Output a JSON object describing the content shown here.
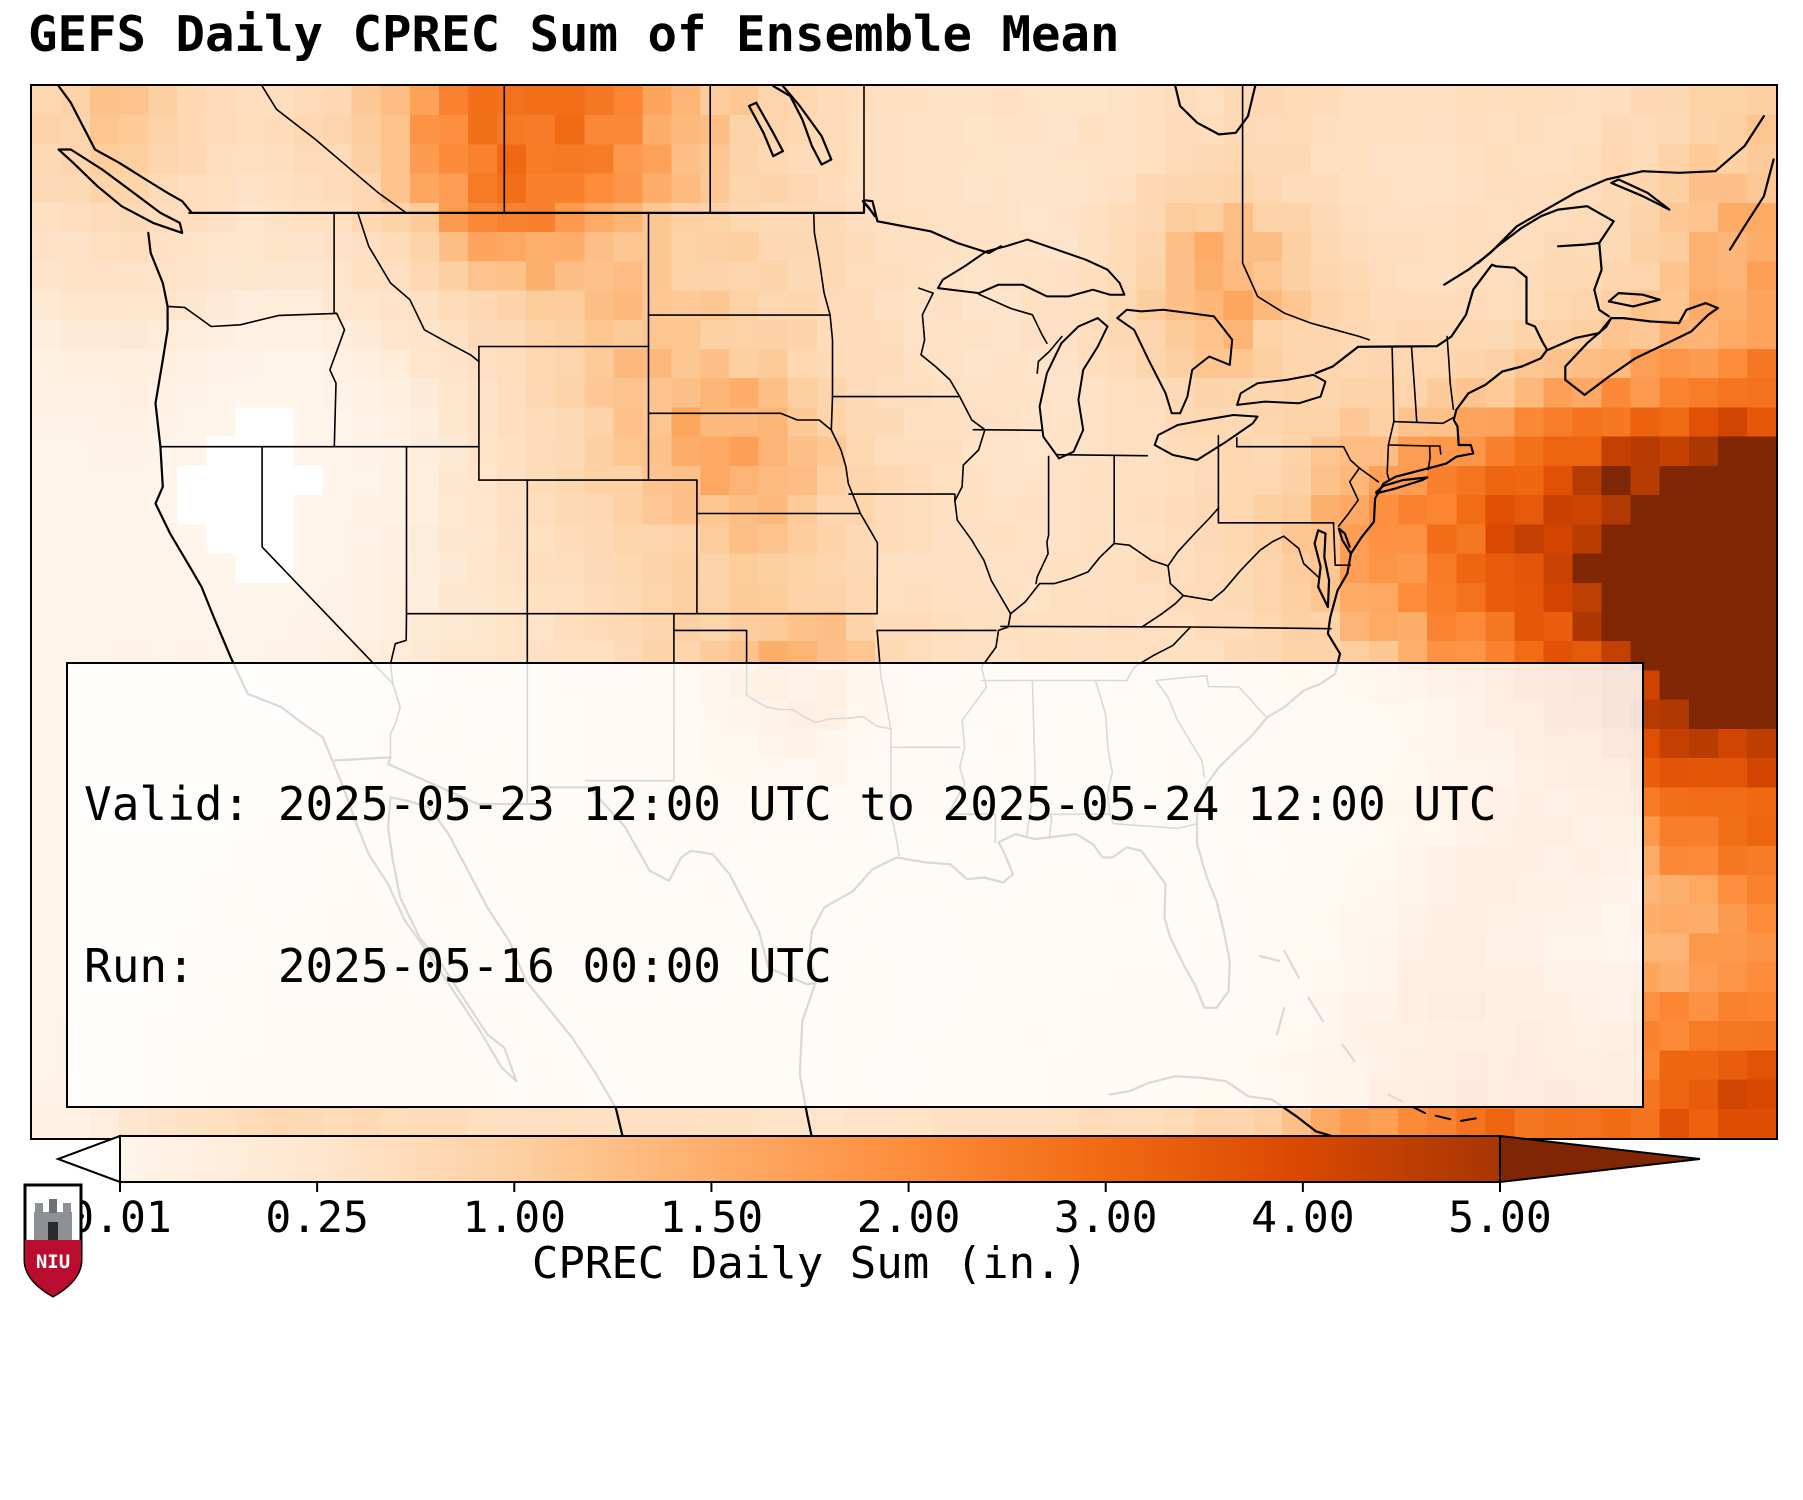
{
  "title": "GEFS Daily CPREC Sum of Ensemble Mean",
  "info_box": {
    "line1": "Valid: 2025-05-23 12:00 UTC to 2025-05-24 12:00 UTC",
    "line2": "Run:   2025-05-16 00:00 UTC"
  },
  "colorbar": {
    "label": "CPREC Daily Sum (in.)",
    "ticks": [
      "0.01",
      "0.25",
      "1.00",
      "1.50",
      "2.00",
      "3.00",
      "4.00",
      "5.00"
    ]
  },
  "logo": {
    "text": "NIU"
  },
  "chart_data": {
    "type": "heatmap",
    "title": "GEFS Daily CPREC Sum of Ensemble Mean",
    "units": "in.",
    "colorbar_label": "CPREC Daily Sum (in.)",
    "valid": "2025-05-23 12:00 UTC to 2025-05-24 12:00 UTC",
    "run": "2025-05-16 00:00 UTC",
    "levels": [
      0.01,
      0.25,
      1.0,
      1.5,
      2.0,
      3.0,
      4.0,
      5.0
    ],
    "palette": [
      "#fff5eb",
      "#fee6ce",
      "#fdd0a2",
      "#fdae6b",
      "#fd8d3c",
      "#f16913",
      "#d94801",
      "#a63603"
    ],
    "over_color": "#7f2704",
    "under_color": "#ffffff",
    "extent": {
      "lon": [
        -129.5,
        -57.5
      ],
      "lat": [
        21.3,
        52.8
      ]
    },
    "grid": {
      "cols": 30,
      "rows": 18,
      "values": [
        [
          0.9,
          1.2,
          0.8,
          0.5,
          0.6,
          0.9,
          1.5,
          2.4,
          2.9,
          2.6,
          1.9,
          1.3,
          0.9,
          0.7,
          0.5,
          0.4,
          0.4,
          0.35,
          0.4,
          0.5,
          0.6,
          0.7,
          0.5,
          0.45,
          0.5,
          0.6,
          0.5,
          0.6,
          0.8,
          1.0
        ],
        [
          0.7,
          1.0,
          0.7,
          0.4,
          0.5,
          0.7,
          1.3,
          2.6,
          3.1,
          2.3,
          1.6,
          1.1,
          0.8,
          0.6,
          0.45,
          0.35,
          0.3,
          0.3,
          0.4,
          0.6,
          0.8,
          0.6,
          0.45,
          0.35,
          0.4,
          0.5,
          0.5,
          0.7,
          1.0,
          1.2
        ],
        [
          0.4,
          0.6,
          0.5,
          0.3,
          0.35,
          0.5,
          0.8,
          1.6,
          2.0,
          1.5,
          1.2,
          1.0,
          0.85,
          0.7,
          0.5,
          0.4,
          0.35,
          0.3,
          0.5,
          1.0,
          1.4,
          1.0,
          0.5,
          0.4,
          0.45,
          0.5,
          0.6,
          0.8,
          1.2,
          1.5
        ],
        [
          0.25,
          0.35,
          0.25,
          0.2,
          0.15,
          0.3,
          0.45,
          0.8,
          1.1,
          1.2,
          1.25,
          1.0,
          0.85,
          0.7,
          0.5,
          0.4,
          0.35,
          0.4,
          0.6,
          1.2,
          1.7,
          1.2,
          0.8,
          0.6,
          0.5,
          0.55,
          0.7,
          0.9,
          1.3,
          1.6
        ],
        [
          0.12,
          0.15,
          0.1,
          0.05,
          0.02,
          0.1,
          0.25,
          0.45,
          0.7,
          1.0,
          1.3,
          1.2,
          0.95,
          0.75,
          0.55,
          0.4,
          0.3,
          0.4,
          0.6,
          0.9,
          1.2,
          0.9,
          0.8,
          0.7,
          0.7,
          0.8,
          1.0,
          1.2,
          1.6,
          2.0
        ],
        [
          0.06,
          0.08,
          0.04,
          0.01,
          0.005,
          0.03,
          0.1,
          0.3,
          0.55,
          0.9,
          1.2,
          1.6,
          1.4,
          0.9,
          0.6,
          0.45,
          0.35,
          0.3,
          0.4,
          0.6,
          0.8,
          0.7,
          0.9,
          1.0,
          1.2,
          1.5,
          1.8,
          2.2,
          2.8,
          3.2
        ],
        [
          0.02,
          0.03,
          0.01,
          0.005,
          0.005,
          0.02,
          0.08,
          0.25,
          0.5,
          0.8,
          1.1,
          1.5,
          1.8,
          1.2,
          0.7,
          0.5,
          0.35,
          0.3,
          0.4,
          0.5,
          0.6,
          0.8,
          1.2,
          1.6,
          2.2,
          3.0,
          3.8,
          4.8,
          5.5,
          5.8
        ],
        [
          0.02,
          0.03,
          0.01,
          0.005,
          0.005,
          0.03,
          0.1,
          0.25,
          0.45,
          0.7,
          0.9,
          1.1,
          1.2,
          0.9,
          0.6,
          0.45,
          0.4,
          0.4,
          0.45,
          0.5,
          0.7,
          1.0,
          1.5,
          2.0,
          2.8,
          3.8,
          4.8,
          5.6,
          6.0,
          6.0
        ],
        [
          0.02,
          0.03,
          0.02,
          0.01,
          0.01,
          0.05,
          0.12,
          0.25,
          0.4,
          0.6,
          0.8,
          0.9,
          1.0,
          0.8,
          0.55,
          0.45,
          0.4,
          0.4,
          0.5,
          0.55,
          0.65,
          0.95,
          1.4,
          1.9,
          2.6,
          3.6,
          4.6,
          5.6,
          6.0,
          6.0
        ],
        [
          0.02,
          0.03,
          0.03,
          0.02,
          0.03,
          0.08,
          0.15,
          0.25,
          0.35,
          0.5,
          0.7,
          0.9,
          1.2,
          1.5,
          0.8,
          0.5,
          0.45,
          0.4,
          0.45,
          0.5,
          0.55,
          0.75,
          1.05,
          1.45,
          2.0,
          2.8,
          3.8,
          5.0,
          6.0,
          6.0
        ],
        [
          0.02,
          0.04,
          0.05,
          0.05,
          0.08,
          0.12,
          0.18,
          0.28,
          0.38,
          0.5,
          0.7,
          1.0,
          1.6,
          2.0,
          1.2,
          0.6,
          0.45,
          0.42,
          0.45,
          0.5,
          0.6,
          0.7,
          0.9,
          1.15,
          1.55,
          2.2,
          3.0,
          4.2,
          5.2,
          5.6
        ],
        [
          0.02,
          0.05,
          0.08,
          0.1,
          0.15,
          0.2,
          0.25,
          0.33,
          0.4,
          0.5,
          0.6,
          0.8,
          1.1,
          1.3,
          0.9,
          0.6,
          0.45,
          0.42,
          0.42,
          0.45,
          0.5,
          0.55,
          0.65,
          0.85,
          1.25,
          1.65,
          2.2,
          3.0,
          3.8,
          4.2
        ],
        [
          0.02,
          0.05,
          0.1,
          0.15,
          0.2,
          0.28,
          0.33,
          0.4,
          0.42,
          0.5,
          0.55,
          0.6,
          0.6,
          0.55,
          0.5,
          0.45,
          0.42,
          0.4,
          0.42,
          0.42,
          0.45,
          0.5,
          0.7,
          1.0,
          1.4,
          1.8,
          2.0,
          2.2,
          2.6,
          3.0
        ],
        [
          0.02,
          0.05,
          0.12,
          0.2,
          0.3,
          0.4,
          0.42,
          0.42,
          0.4,
          0.42,
          0.45,
          0.5,
          0.45,
          0.4,
          0.35,
          0.33,
          0.38,
          0.4,
          0.42,
          0.42,
          0.45,
          0.55,
          0.85,
          1.3,
          1.8,
          2.0,
          1.8,
          1.5,
          1.8,
          2.2
        ],
        [
          0.02,
          0.06,
          0.15,
          0.3,
          0.42,
          0.5,
          0.5,
          0.42,
          0.4,
          0.4,
          0.4,
          0.42,
          0.4,
          0.33,
          0.3,
          0.3,
          0.33,
          0.38,
          0.42,
          0.45,
          0.5,
          0.65,
          1.0,
          1.5,
          2.0,
          1.8,
          1.4,
          1.2,
          1.5,
          1.8
        ],
        [
          0.02,
          0.06,
          0.2,
          0.4,
          0.5,
          0.6,
          0.55,
          0.5,
          0.42,
          0.4,
          0.4,
          0.4,
          0.35,
          0.3,
          0.3,
          0.3,
          0.33,
          0.4,
          0.5,
          0.55,
          0.6,
          0.8,
          1.2,
          1.8,
          2.2,
          2.0,
          1.6,
          1.5,
          1.8,
          2.4
        ],
        [
          0.03,
          0.1,
          0.3,
          0.5,
          0.6,
          0.62,
          0.55,
          0.5,
          0.48,
          0.42,
          0.4,
          0.4,
          0.35,
          0.3,
          0.3,
          0.33,
          0.38,
          0.45,
          0.55,
          0.65,
          0.75,
          0.95,
          1.35,
          1.85,
          2.2,
          2.4,
          2.0,
          2.2,
          2.8,
          3.2
        ],
        [
          0.05,
          0.15,
          0.4,
          0.6,
          0.7,
          0.65,
          0.6,
          0.55,
          0.5,
          0.5,
          0.45,
          0.42,
          0.4,
          0.33,
          0.33,
          0.4,
          0.45,
          0.5,
          0.55,
          0.65,
          0.85,
          1.05,
          1.55,
          2.05,
          2.55,
          2.8,
          2.5,
          2.8,
          3.5,
          4.0
        ]
      ]
    }
  }
}
